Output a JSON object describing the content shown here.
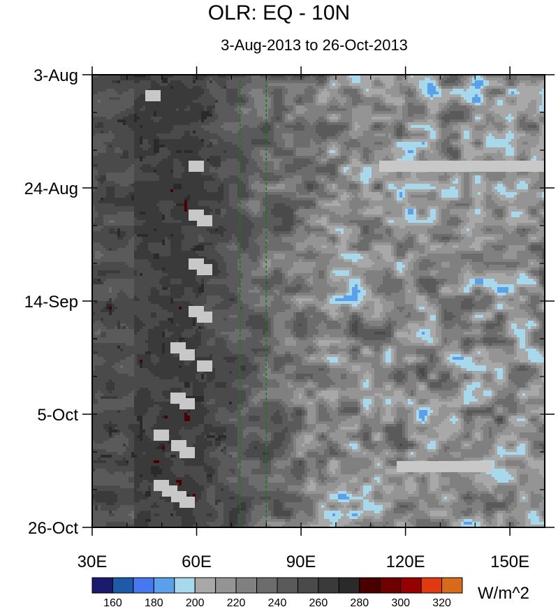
{
  "chart_data": {
    "type": "heatmap",
    "title": "OLR: EQ - 10N",
    "subtitle": "3-Aug-2013 to 26-Oct-2013",
    "x_axis": {
      "range": [
        30,
        160
      ],
      "ticks": [
        30,
        60,
        90,
        120,
        150
      ],
      "tick_labels": [
        "30E",
        "60E",
        "90E",
        "120E",
        "150E"
      ],
      "minor_step": 10
    },
    "y_axis": {
      "range": [
        "2013-08-03",
        "2013-10-26"
      ],
      "reversed": true,
      "ticks": [
        "2013-08-03",
        "2013-08-24",
        "2013-09-14",
        "2013-10-05",
        "2013-10-26"
      ],
      "tick_labels": [
        "3-Aug",
        "24-Aug",
        "14-Sep",
        "5-Oct",
        "26-Oct"
      ],
      "minor_step_days": 7
    },
    "colorbar": {
      "units": "W/m^2",
      "levels": [
        160,
        170,
        180,
        190,
        200,
        210,
        220,
        230,
        240,
        250,
        260,
        270,
        280,
        290,
        300,
        310,
        320
      ],
      "labels": [
        "160",
        "180",
        "200",
        "220",
        "240",
        "260",
        "280",
        "300",
        "320"
      ],
      "colors": [
        "#1a1a6e",
        "#1f5aa8",
        "#4878f0",
        "#5aa0ea",
        "#a8d8ec",
        "#a8a8a8",
        "#949494",
        "#808080",
        "#6c6c6c",
        "#5a5a5a",
        "#4a4a4a",
        "#3a3a3a",
        "#2a2a2a",
        "#4a0000",
        "#6e0000",
        "#960000",
        "#e03a12",
        "#d86a1c"
      ]
    },
    "reference_lines": {
      "style": "dashed",
      "color": "#1a7a1a",
      "x_values": [
        72.5,
        80
      ]
    },
    "missing_data_color": "#c8c8c8"
  }
}
